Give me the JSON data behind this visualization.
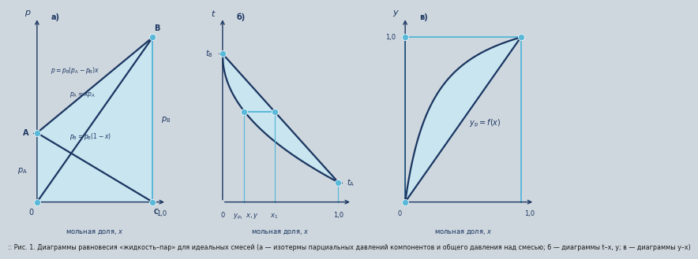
{
  "bg_color": "#cfd7de",
  "line_dark": "#1a3560",
  "line_light": "#5ab8d8",
  "fill_color": "#c8e8f4",
  "fill_alpha": 0.85,
  "dot_color": "#5ab8d8",
  "panel_a": {
    "pA": 0.42,
    "pB": 1.0
  },
  "panel_b": {
    "tB_val": 0.9,
    "tA_val": 0.12,
    "curve_exp": 0.48,
    "tie_t": 0.55
  },
  "panel_c": {
    "curve_exp": 2.5
  },
  "caption": ":: Рис. 1. Диаграммы равновесия «жидкость–пар» для идеальных смесей (а — изотермы парциальных давлений компонентов и общего давления над смесью; б — диаграммы t–x, y; в — диаграммы y–x)"
}
